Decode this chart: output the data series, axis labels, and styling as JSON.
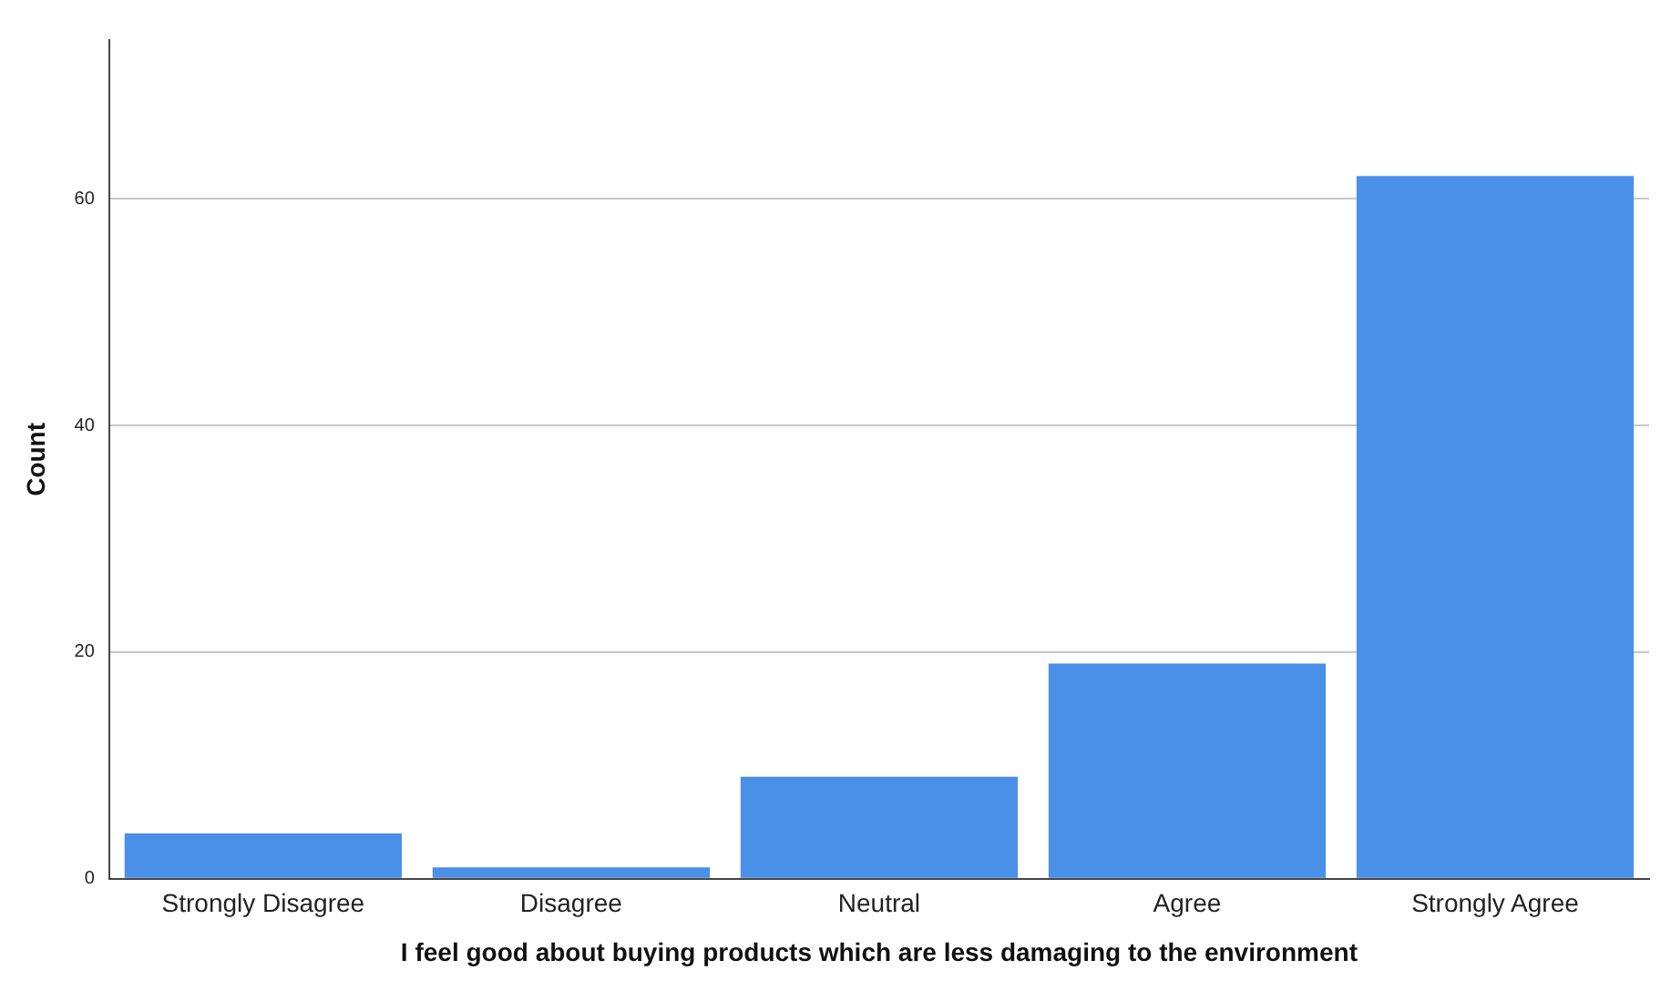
{
  "chart_data": {
    "type": "bar",
    "xlabel": "I feel good about buying products which are less damaging to the environment",
    "ylabel": "Count",
    "categories": [
      "Strongly Disagree",
      "Disagree",
      "Neutral",
      "Agree",
      "Strongly Agree"
    ],
    "values": [
      4,
      1,
      9,
      19,
      62
    ],
    "color": "#4a8fe8",
    "ylim": [
      0,
      74
    ],
    "yticks": [
      0,
      20,
      40,
      60
    ],
    "grid": "y"
  }
}
